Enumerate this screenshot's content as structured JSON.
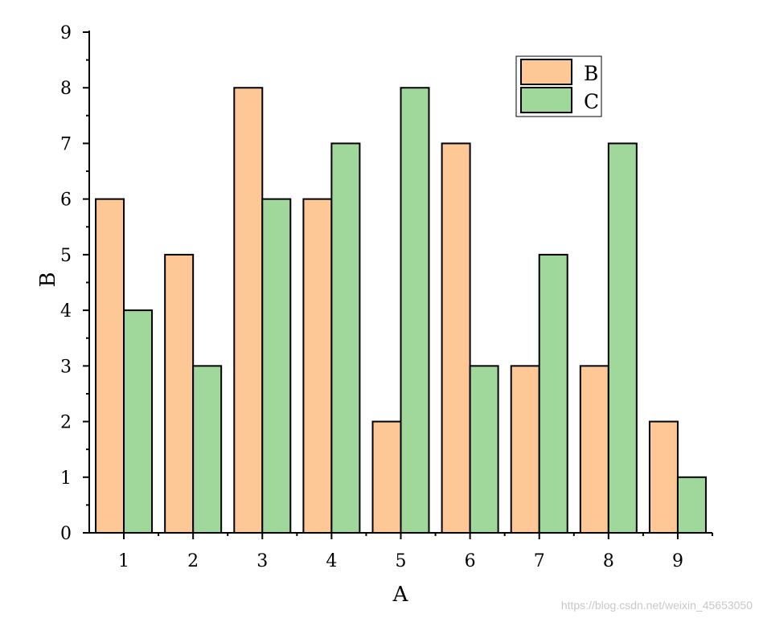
{
  "chart_data": {
    "type": "bar",
    "categories": [
      "1",
      "2",
      "3",
      "4",
      "5",
      "6",
      "7",
      "8",
      "9"
    ],
    "series": [
      {
        "name": "B",
        "values": [
          6,
          5,
          8,
          6,
          2,
          7,
          3,
          3,
          2
        ],
        "color": "#fdc896"
      },
      {
        "name": "C",
        "values": [
          4,
          3,
          6,
          7,
          8,
          3,
          5,
          7,
          1
        ],
        "color": "#a0d89c"
      }
    ],
    "xlabel": "A",
    "ylabel": "B",
    "ylim": [
      0,
      9
    ],
    "yticks": [
      0,
      1,
      2,
      3,
      4,
      5,
      6,
      7,
      8,
      9
    ],
    "grid": false,
    "legend_position": "top-right"
  },
  "watermark": "https://blog.csdn.net/weixin_45653050"
}
